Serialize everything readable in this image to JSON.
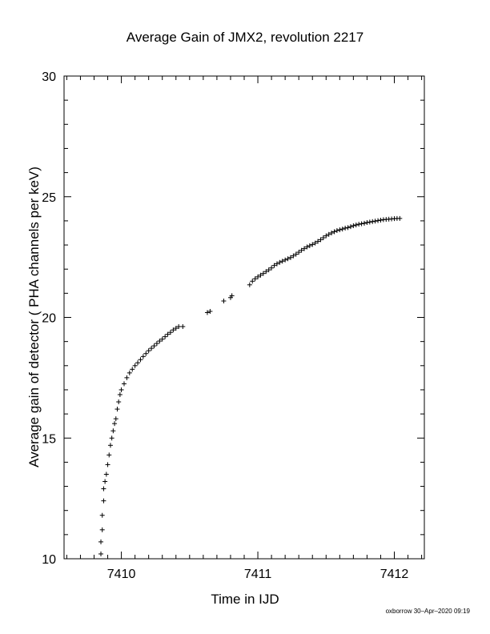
{
  "chart_data": {
    "type": "scatter",
    "title": "Average Gain of JMX2, revolution 2217",
    "xlabel": "Time in IJD",
    "ylabel": "Average gain of detector ( PHA channels per keV)",
    "xlim": [
      7409.58,
      7412.22
    ],
    "ylim": [
      10,
      30
    ],
    "x_ticks": [
      "7410",
      "7411",
      "7412"
    ],
    "y_ticks": [
      "10",
      "15",
      "20",
      "25",
      "30"
    ],
    "marker": "+",
    "grid": false,
    "series": [
      {
        "points": [
          [
            7409.85,
            10.2
          ],
          [
            7409.85,
            10.7
          ],
          [
            7409.86,
            11.2
          ],
          [
            7409.86,
            11.8
          ],
          [
            7409.87,
            12.4
          ],
          [
            7409.87,
            12.9
          ],
          [
            7409.88,
            13.2
          ],
          [
            7409.89,
            13.5
          ],
          [
            7409.9,
            13.9
          ],
          [
            7409.91,
            14.3
          ],
          [
            7409.92,
            14.7
          ],
          [
            7409.93,
            15.0
          ],
          [
            7409.94,
            15.3
          ],
          [
            7409.95,
            15.6
          ],
          [
            7409.96,
            15.8
          ],
          [
            7409.97,
            16.2
          ],
          [
            7409.98,
            16.5
          ],
          [
            7409.99,
            16.8
          ],
          [
            7410.0,
            17.0
          ],
          [
            7410.02,
            17.25
          ],
          [
            7410.04,
            17.5
          ],
          [
            7410.06,
            17.7
          ],
          [
            7410.08,
            17.85
          ],
          [
            7410.1,
            18.0
          ],
          [
            7410.12,
            18.12
          ],
          [
            7410.14,
            18.25
          ],
          [
            7410.16,
            18.38
          ],
          [
            7410.18,
            18.5
          ],
          [
            7410.2,
            18.62
          ],
          [
            7410.22,
            18.72
          ],
          [
            7410.24,
            18.82
          ],
          [
            7410.26,
            18.92
          ],
          [
            7410.28,
            19.02
          ],
          [
            7410.3,
            19.1
          ],
          [
            7410.32,
            19.2
          ],
          [
            7410.34,
            19.3
          ],
          [
            7410.36,
            19.38
          ],
          [
            7410.38,
            19.48
          ],
          [
            7410.4,
            19.55
          ],
          [
            7410.42,
            19.62
          ],
          [
            7410.45,
            19.62
          ],
          [
            7410.63,
            20.2
          ],
          [
            7410.65,
            20.25
          ],
          [
            7410.75,
            20.68
          ],
          [
            7410.8,
            20.82
          ],
          [
            7410.81,
            20.9
          ],
          [
            7410.94,
            21.35
          ],
          [
            7410.96,
            21.5
          ],
          [
            7410.98,
            21.6
          ],
          [
            7411.0,
            21.68
          ],
          [
            7411.02,
            21.75
          ],
          [
            7411.04,
            21.82
          ],
          [
            7411.06,
            21.9
          ],
          [
            7411.08,
            21.97
          ],
          [
            7411.1,
            22.05
          ],
          [
            7411.12,
            22.15
          ],
          [
            7411.14,
            22.22
          ],
          [
            7411.16,
            22.28
          ],
          [
            7411.18,
            22.33
          ],
          [
            7411.2,
            22.38
          ],
          [
            7411.22,
            22.43
          ],
          [
            7411.24,
            22.48
          ],
          [
            7411.26,
            22.55
          ],
          [
            7411.28,
            22.62
          ],
          [
            7411.3,
            22.7
          ],
          [
            7411.32,
            22.78
          ],
          [
            7411.34,
            22.85
          ],
          [
            7411.36,
            22.92
          ],
          [
            7411.38,
            22.97
          ],
          [
            7411.4,
            23.02
          ],
          [
            7411.42,
            23.08
          ],
          [
            7411.44,
            23.15
          ],
          [
            7411.46,
            23.22
          ],
          [
            7411.48,
            23.3
          ],
          [
            7411.5,
            23.38
          ],
          [
            7411.52,
            23.44
          ],
          [
            7411.54,
            23.5
          ],
          [
            7411.56,
            23.55
          ],
          [
            7411.58,
            23.6
          ],
          [
            7411.6,
            23.63
          ],
          [
            7411.62,
            23.66
          ],
          [
            7411.64,
            23.7
          ],
          [
            7411.66,
            23.72
          ],
          [
            7411.68,
            23.76
          ],
          [
            7411.7,
            23.8
          ],
          [
            7411.72,
            23.83
          ],
          [
            7411.74,
            23.86
          ],
          [
            7411.76,
            23.88
          ],
          [
            7411.78,
            23.9
          ],
          [
            7411.8,
            23.93
          ],
          [
            7411.82,
            23.95
          ],
          [
            7411.84,
            23.97
          ],
          [
            7411.86,
            23.99
          ],
          [
            7411.88,
            24.01
          ],
          [
            7411.9,
            24.03
          ],
          [
            7411.92,
            24.05
          ],
          [
            7411.94,
            24.06
          ],
          [
            7411.96,
            24.07
          ],
          [
            7411.98,
            24.08
          ],
          [
            7412.0,
            24.09
          ],
          [
            7412.02,
            24.1
          ],
          [
            7412.04,
            24.1
          ]
        ]
      }
    ]
  },
  "footer": {
    "credit": "oxborrow 30–Apr–2020 09:19"
  },
  "colors": {
    "ink": "#000000",
    "background": "#ffffff"
  }
}
